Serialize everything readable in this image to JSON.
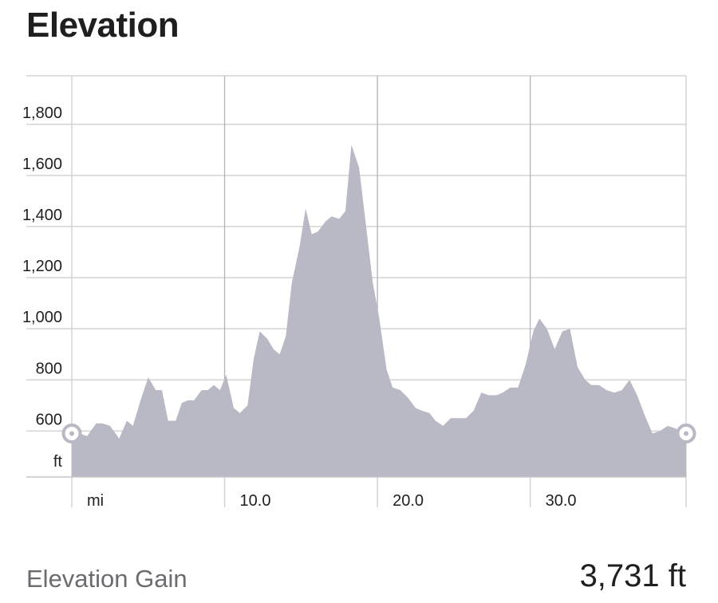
{
  "header": {
    "title": "Elevation"
  },
  "colors": {
    "area_fill": "#b9b8c5",
    "grid": "#d3d3d6",
    "text": "#1f1f22",
    "muted_text": "#6b6b70",
    "handle_fill": "#ffffff",
    "handle_stroke": "#b9b8c5"
  },
  "chart_data": {
    "type": "area",
    "x_unit": "mi",
    "y_unit": "ft",
    "ylim": [
      420,
      1990
    ],
    "xlim": [
      0,
      40.2
    ],
    "y_ticks": [
      600,
      800,
      1000,
      1200,
      1400,
      1600,
      1800
    ],
    "y_tick_labels": [
      "600",
      "800",
      "1,000",
      "1,200",
      "1,400",
      "1,600",
      "1,800"
    ],
    "x_ticks": [
      10,
      20,
      30
    ],
    "x_tick_labels": [
      "10.0",
      "20.0",
      "30.0"
    ],
    "grid": true,
    "range_handles": [
      0,
      40.2
    ],
    "x": [
      0,
      0.5,
      1.0,
      1.6,
      2.0,
      2.5,
      3.1,
      3.6,
      4.0,
      4.5,
      5.0,
      5.5,
      5.9,
      6.3,
      6.8,
      7.2,
      7.6,
      8.0,
      8.5,
      8.9,
      9.3,
      9.7,
      10.1,
      10.6,
      11.0,
      11.5,
      11.9,
      12.3,
      12.8,
      13.2,
      13.6,
      14.0,
      14.4,
      14.9,
      15.3,
      15.7,
      16.1,
      16.6,
      17.0,
      17.5,
      17.9,
      18.3,
      18.8,
      19.2,
      19.7,
      20.1,
      20.6,
      21.0,
      21.5,
      22.0,
      22.5,
      22.9,
      23.4,
      23.8,
      24.3,
      24.8,
      25.3,
      25.8,
      26.3,
      26.8,
      27.3,
      27.8,
      28.2,
      28.7,
      29.2,
      29.7,
      30.2,
      30.6,
      31.1,
      31.6,
      32.1,
      32.6,
      33.1,
      33.6,
      34.0,
      34.5,
      35.0,
      35.5,
      36.0,
      36.5,
      37.0,
      37.5,
      38.0,
      38.5,
      39.0,
      39.5,
      40.2
    ],
    "y": [
      590,
      590,
      580,
      630,
      630,
      620,
      570,
      640,
      620,
      720,
      810,
      760,
      760,
      640,
      640,
      710,
      720,
      720,
      760,
      760,
      780,
      760,
      820,
      690,
      670,
      700,
      880,
      990,
      960,
      920,
      900,
      970,
      1180,
      1320,
      1470,
      1370,
      1380,
      1420,
      1440,
      1430,
      1460,
      1720,
      1630,
      1430,
      1180,
      1050,
      840,
      770,
      760,
      730,
      690,
      680,
      670,
      640,
      620,
      650,
      650,
      650,
      680,
      750,
      740,
      740,
      750,
      770,
      770,
      860,
      990,
      1040,
      1000,
      920,
      990,
      1000,
      850,
      800,
      780,
      780,
      760,
      750,
      760,
      800,
      740,
      660,
      590,
      600,
      620,
      610,
      590
    ]
  },
  "stats": {
    "gain_label": "Elevation Gain",
    "gain_value": "3,731 ft"
  }
}
